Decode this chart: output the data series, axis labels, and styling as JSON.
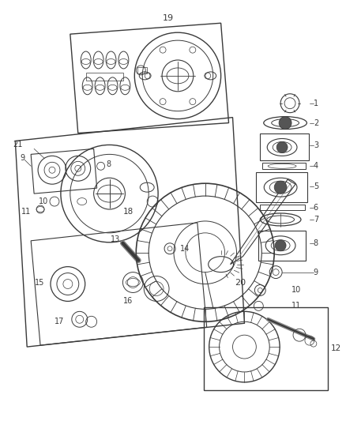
{
  "background_color": "#ffffff",
  "line_color": "#3a3a3a",
  "figsize": [
    4.38,
    5.33
  ],
  "dpi": 100
}
